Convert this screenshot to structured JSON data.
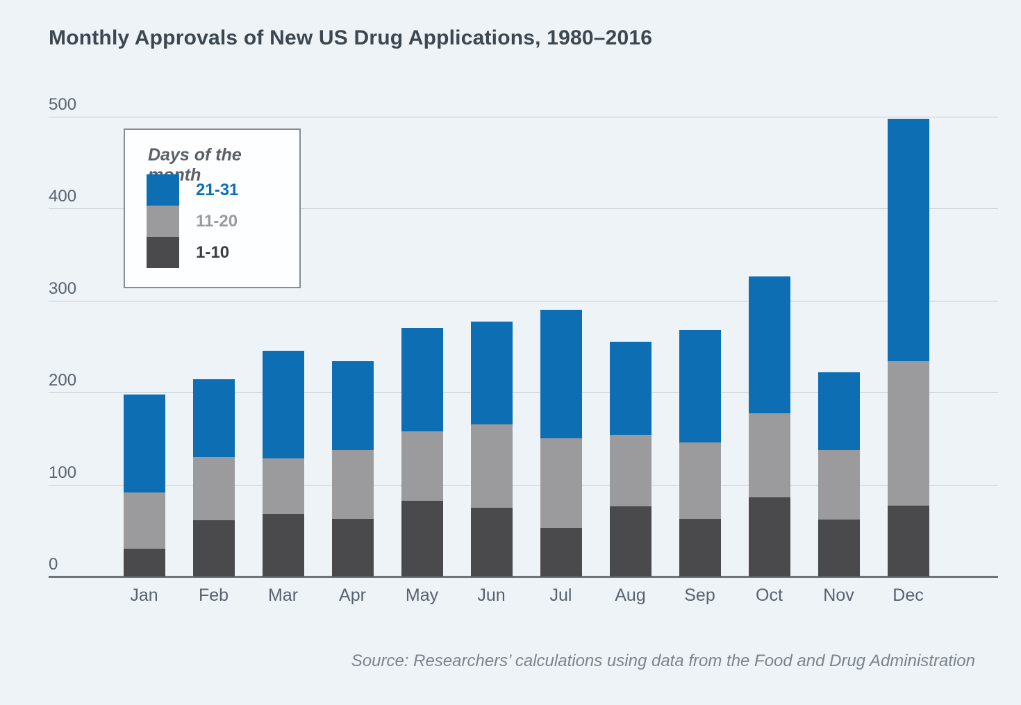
{
  "title": "Monthly Approvals of New US Drug Applications, 1980–2016",
  "source": "Source: Researchers’ calculations using data from the Food and Drug Administration",
  "legend": {
    "title": "Days of the month",
    "items": [
      {
        "label": "21-31",
        "swatch_color": "#0e6eb3",
        "text_color": "#0e6eb3"
      },
      {
        "label": "11-20",
        "swatch_color": "#9b9b9d",
        "text_color": "#9b9b9d"
      },
      {
        "label": "1-10",
        "swatch_color": "#4a4a4c",
        "text_color": "#3d3d3f"
      }
    ]
  },
  "chart_data": {
    "type": "bar",
    "stacked": true,
    "title": "Monthly Approvals of New US Drug Applications, 1980–2016",
    "categories": [
      "Jan",
      "Feb",
      "Mar",
      "Apr",
      "May",
      "Jun",
      "Jul",
      "Aug",
      "Sep",
      "Oct",
      "Nov",
      "Dec"
    ],
    "series": [
      {
        "name": "1-10",
        "color": "#4a4a4c",
        "values": [
          30,
          61,
          68,
          63,
          82,
          75,
          53,
          76,
          63,
          86,
          62,
          77
        ]
      },
      {
        "name": "11-20",
        "color": "#9b9b9d",
        "values": [
          61,
          69,
          60,
          74,
          76,
          90,
          97,
          78,
          83,
          91,
          75,
          157
        ]
      },
      {
        "name": "21-31",
        "color": "#0e6eb3",
        "values": [
          107,
          84,
          117,
          97,
          112,
          112,
          140,
          101,
          122,
          149,
          85,
          263
        ]
      }
    ],
    "totals": [
      198,
      214,
      245,
      234,
      270,
      277,
      290,
      255,
      268,
      326,
      222,
      497
    ],
    "xlabel": "",
    "ylabel": "",
    "ylim": [
      0,
      500
    ],
    "yticks": [
      0,
      100,
      200,
      300,
      400,
      500
    ],
    "grid": true,
    "legend_position": "upper-left-inside",
    "colors": {
      "background": "#eef3f7",
      "gridline": "#c7ccd2",
      "axis_line": "#6e747b",
      "blue_21_31": "#0e6eb3",
      "gray_11_20": "#9b9b9d",
      "dark_1_10": "#4a4a4c"
    }
  }
}
